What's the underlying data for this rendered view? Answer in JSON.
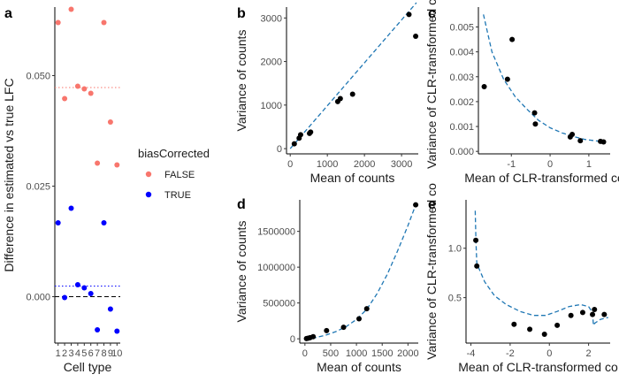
{
  "figure": {
    "panel_labels": [
      "a",
      "b",
      "c",
      "d",
      "e"
    ],
    "legend": {
      "title": "biasCorrected",
      "entries": [
        {
          "label": "FALSE",
          "color": "#F8766D"
        },
        {
          "label": "TRUE",
          "color": "#0000FF"
        }
      ]
    }
  },
  "chart_data": [
    {
      "id": "a",
      "type": "scatter",
      "xlabel": "Cell type",
      "ylabel": "Difference in estimated vs true LFC",
      "x_ticks": [
        1,
        2,
        3,
        4,
        5,
        6,
        7,
        8,
        9,
        10
      ],
      "y_ticks": [
        0.0,
        0.025,
        0.05
      ],
      "y_tick_labels": [
        "0.000",
        "0.025",
        "0.050"
      ],
      "ylim": [
        -0.0105,
        0.0655
      ],
      "xlim": [
        0.5,
        10.5
      ],
      "series": [
        {
          "name": "FALSE",
          "color": "#F8766D",
          "x": [
            1,
            2,
            3,
            4,
            5,
            6,
            7,
            8,
            9,
            10
          ],
          "y": [
            0.062,
            0.0448,
            0.065,
            0.0476,
            0.047,
            0.046,
            0.0302,
            0.062,
            0.0395,
            0.0298
          ]
        },
        {
          "name": "TRUE",
          "color": "#0000FF",
          "x": [
            1,
            2,
            3,
            4,
            5,
            6,
            7,
            8,
            9,
            10
          ],
          "y": [
            0.0167,
            -0.0002,
            0.02,
            0.0027,
            0.002,
            0.0007,
            -0.0075,
            0.0167,
            -0.0028,
            -0.0078
          ]
        }
      ],
      "hlines": [
        {
          "y": 0.0473,
          "color": "#F8766D",
          "style": "dotted"
        },
        {
          "y": 0.0024,
          "color": "#0000FF",
          "style": "dotted"
        },
        {
          "y": 0.0,
          "color": "#000000",
          "style": "dashed"
        }
      ],
      "grid": false
    },
    {
      "id": "b",
      "type": "scatter",
      "xlabel": "Mean of counts",
      "ylabel": "Variance of counts",
      "x_ticks": [
        0,
        1000,
        2000,
        3000
      ],
      "x_tick_labels": [
        "0",
        "1000",
        "2000",
        "3000"
      ],
      "y_ticks": [
        0,
        1000,
        2000,
        3000
      ],
      "y_tick_labels": [
        "0",
        "1000",
        "2000",
        "3000"
      ],
      "xlim": [
        -100,
        3450
      ],
      "ylim": [
        -120,
        3250
      ],
      "points": {
        "x": [
          110,
          240,
          280,
          520,
          550,
          1280,
          1350,
          1680,
          3200,
          3380
        ],
        "y": [
          110,
          240,
          320,
          350,
          380,
          1080,
          1150,
          1250,
          3080,
          2580
        ]
      },
      "fit_line": {
        "x": [
          0,
          3400
        ],
        "y": [
          0,
          3350
        ],
        "color": "#1F77B4",
        "style": "dashed"
      },
      "grid": false
    },
    {
      "id": "c",
      "type": "scatter",
      "xlabel": "Mean of CLR-transformed co",
      "ylabel": "Variance of CLR-transformed co",
      "x_ticks": [
        -1,
        0,
        1
      ],
      "x_tick_labels": [
        "-1",
        "0",
        "1"
      ],
      "y_ticks": [
        0.0,
        0.001,
        0.002,
        0.003,
        0.004,
        0.005
      ],
      "y_tick_labels": [
        "0.000",
        "0.001",
        "0.002",
        "0.003",
        "0.004",
        "0.005"
      ],
      "xlim": [
        -1.85,
        1.55
      ],
      "ylim": [
        -0.0001,
        0.0058
      ],
      "points": {
        "x": [
          -1.7,
          -1.1,
          -0.98,
          -0.4,
          -0.38,
          0.52,
          0.57,
          0.78,
          1.3,
          1.38
        ],
        "y": [
          0.0026,
          0.0029,
          0.0045,
          0.00155,
          0.0011,
          0.00058,
          0.00068,
          0.00043,
          0.0004,
          0.00038
        ]
      },
      "fit_line": {
        "x": [
          -1.72,
          -1.5,
          -1.2,
          -0.9,
          -0.6,
          -0.3,
          0.0,
          0.3,
          0.6,
          0.9,
          1.2,
          1.4
        ],
        "y": [
          0.0055,
          0.004,
          0.0029,
          0.0022,
          0.0017,
          0.00125,
          0.00095,
          0.00075,
          0.0006,
          0.00048,
          0.00042,
          0.0004
        ],
        "color": "#1F77B4",
        "style": "dashed"
      },
      "grid": false
    },
    {
      "id": "d",
      "type": "scatter",
      "xlabel": "Mean of counts",
      "ylabel": "Variance of counts",
      "x_ticks": [
        0,
        500,
        1000,
        1500,
        2000
      ],
      "x_tick_labels": [
        "0",
        "500",
        "1000",
        "1500",
        "2000"
      ],
      "y_ticks": [
        0,
        500000,
        1000000,
        1500000
      ],
      "y_tick_labels": [
        "0",
        "500000",
        "1000000",
        "1500000"
      ],
      "xlim": [
        -100,
        2200
      ],
      "ylim": [
        -60000,
        1940000
      ],
      "points": {
        "x": [
          30,
          60,
          100,
          160,
          420,
          750,
          1050,
          1200,
          2150
        ],
        "y": [
          3000,
          8000,
          15000,
          30000,
          115000,
          160000,
          280000,
          420000,
          1870000
        ]
      },
      "fit_line": {
        "x": [
          0,
          200,
          400,
          600,
          800,
          1000,
          1200,
          1400,
          1600,
          1800,
          2000,
          2150
        ],
        "y": [
          0,
          15000,
          50000,
          100000,
          170000,
          270000,
          410000,
          630000,
          900000,
          1230000,
          1580000,
          1870000
        ],
        "color": "#1F77B4",
        "style": "dashed"
      },
      "grid": false
    },
    {
      "id": "e",
      "type": "scatter",
      "xlabel": "Mean of CLR-transformed co",
      "ylabel": "Variance of CLR-transformed co",
      "x_ticks": [
        -4,
        -2,
        0,
        2
      ],
      "x_tick_labels": [
        "-4",
        "-2",
        "0",
        "2"
      ],
      "y_ticks": [
        0.5,
        1.0
      ],
      "y_tick_labels": [
        "0.5",
        "1.0"
      ],
      "xlim": [
        -4.25,
        3.1
      ],
      "ylim": [
        0.04,
        1.49
      ],
      "points": {
        "x": [
          -3.75,
          -3.7,
          -1.8,
          -1.0,
          -0.25,
          0.4,
          1.1,
          1.7,
          2.2,
          2.3,
          2.8
        ],
        "y": [
          1.08,
          0.82,
          0.23,
          0.18,
          0.13,
          0.22,
          0.32,
          0.35,
          0.33,
          0.38,
          0.33
        ]
      },
      "fit_line": {
        "x": [
          -3.78,
          -3.74,
          -3.7,
          -3.6,
          -3.3,
          -2.8,
          -2.2,
          -1.5,
          -0.8,
          -0.2,
          0.4,
          1.0,
          1.6,
          2.0,
          2.2,
          2.25,
          2.3,
          2.6,
          3.0
        ],
        "y": [
          1.38,
          1.05,
          0.85,
          0.8,
          0.66,
          0.52,
          0.43,
          0.36,
          0.32,
          0.32,
          0.36,
          0.41,
          0.43,
          0.41,
          0.35,
          0.22,
          0.24,
          0.28,
          0.3
        ],
        "color": "#1F77B4",
        "style": "dashed"
      },
      "grid": false
    }
  ]
}
